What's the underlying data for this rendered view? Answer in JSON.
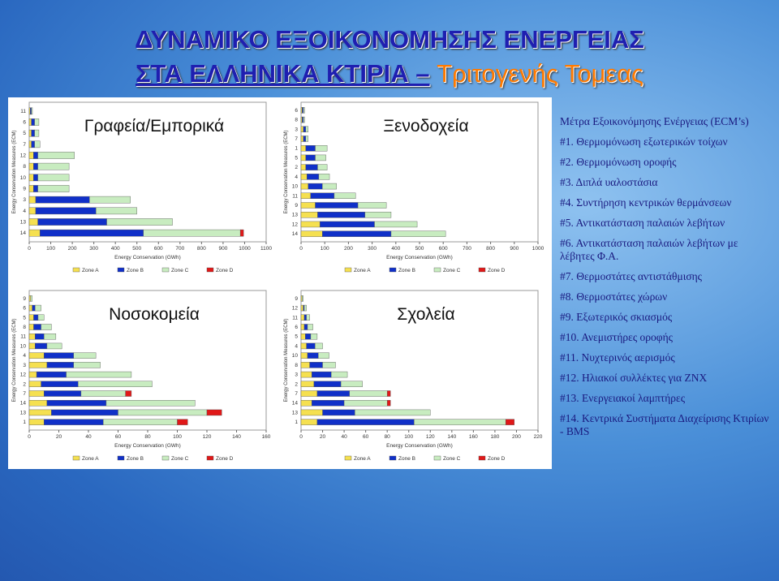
{
  "title": {
    "line1": "ΔΥΝΑΜΙΚΟ ΕΞΟΙΚΟΝΟΜΗΣΗΣ ΕΝΕΡΓΕΙΑΣ",
    "line2": "ΣΤΑ ΕΛΛΗΝΙΚΑ ΚΤΙΡΙΑ –",
    "subtitle": "Τριτογενής Τομεας"
  },
  "measures": {
    "heading": "Μέτρα Εξοικονόμησης Ενέργειας (ECM’s)",
    "items": [
      "#1. Θερμομόνωση εξωτερικών τοίχων",
      "#2. Θερμομόνωση οροφής",
      "#3. Διπλά υαλοστάσια",
      "#4. Συντήρηση κεντρικών θερμάνσεων",
      "#5. Αντικατάσταση παλαιών λεβήτων",
      "#6. Αντικατάσταση παλαιών λεβήτων με λέβητες Φ.Α.",
      "#7. Θερμοστάτες αντιστάθμισης",
      "#8. Θερμοστάτες χώρων",
      "#9. Εξωτερικός σκιασμός",
      "#10. Ανεμιστήρες οροφής",
      "#11. Νυχτερινός αερισμός",
      "#12. Ηλιακοί συλλέκτες για ΖΝΧ",
      "#13. Ενεργειακοί λαμπτήρες",
      "#14. Κεντρικά Συστήματα Διαχείρισης Κτιρίων - BMS"
    ]
  },
  "chart_data": [
    {
      "type": "bar",
      "orientation": "horizontal",
      "stacked": true,
      "title": "Γραφεία/Εμπορικά",
      "x_label": "Energy Conservation (GWh)",
      "y_label": "Energy Conservation Measures (ECM)",
      "categories": [
        "11",
        "6",
        "5",
        "7",
        "12",
        "8",
        "10",
        "9",
        "3",
        "4",
        "13",
        "14"
      ],
      "xlim": [
        0,
        1100
      ],
      "xticks": [
        0,
        100,
        200,
        300,
        400,
        500,
        600,
        700,
        800,
        900,
        1000,
        1100
      ],
      "grid": false,
      "series": [
        {
          "name": "Zone A",
          "color": "#f5e050",
          "values": [
            5,
            10,
            10,
            10,
            20,
            20,
            20,
            20,
            30,
            30,
            40,
            50
          ]
        },
        {
          "name": "Zone B",
          "color": "#1030c8",
          "values": [
            5,
            15,
            15,
            15,
            20,
            20,
            20,
            20,
            250,
            280,
            320,
            480
          ]
        },
        {
          "name": "Zone C",
          "color": "#c8ecc0",
          "values": [
            5,
            20,
            20,
            25,
            170,
            145,
            145,
            145,
            190,
            190,
            305,
            450
          ]
        },
        {
          "name": "Zone D",
          "color": "#e01818",
          "values": [
            0,
            0,
            0,
            0,
            0,
            0,
            0,
            0,
            0,
            0,
            0,
            15
          ]
        }
      ]
    },
    {
      "type": "bar",
      "orientation": "horizontal",
      "stacked": true,
      "title": "Ξενοδοχεία",
      "x_label": "Energy Conservation (GWh)",
      "y_label": "Energy Conservation Measures (ECM)",
      "categories": [
        "6",
        "8",
        "3",
        "7",
        "1",
        "5",
        "2",
        "4",
        "10",
        "11",
        "9",
        "13",
        "12",
        "14"
      ],
      "xlim": [
        0,
        1000
      ],
      "xticks": [
        0,
        100,
        200,
        300,
        400,
        500,
        600,
        700,
        800,
        900,
        1000
      ],
      "grid": false,
      "series": [
        {
          "name": "Zone A",
          "color": "#f5e050",
          "values": [
            5,
            5,
            10,
            10,
            20,
            20,
            20,
            25,
            30,
            40,
            60,
            70,
            80,
            90
          ]
        },
        {
          "name": "Zone B",
          "color": "#1030c8",
          "values": [
            5,
            5,
            10,
            10,
            40,
            40,
            50,
            50,
            60,
            100,
            180,
            200,
            230,
            290
          ]
        },
        {
          "name": "Zone C",
          "color": "#c8ecc0",
          "values": [
            5,
            5,
            10,
            10,
            50,
            45,
            40,
            45,
            60,
            90,
            120,
            110,
            180,
            230
          ]
        },
        {
          "name": "Zone D",
          "color": "#e01818",
          "values": [
            0,
            0,
            0,
            0,
            0,
            0,
            0,
            0,
            0,
            0,
            0,
            0,
            0,
            0
          ]
        }
      ]
    },
    {
      "type": "bar",
      "orientation": "horizontal",
      "stacked": true,
      "title": "Νοσοκομεία",
      "x_label": "Energy Conservation (GWh)",
      "y_label": "Energy Conservation Measures (ECM)",
      "categories": [
        "9",
        "6",
        "5",
        "8",
        "11",
        "10",
        "4",
        "3",
        "12",
        "2",
        "7",
        "14",
        "13",
        "1"
      ],
      "xlim": [
        0,
        160
      ],
      "xticks": [
        0,
        20,
        40,
        60,
        80,
        100,
        120,
        140,
        160
      ],
      "grid": false,
      "series": [
        {
          "name": "Zone A",
          "color": "#f5e050",
          "values": [
            1,
            2,
            3,
            3,
            4,
            4,
            10,
            12,
            5,
            8,
            10,
            12,
            15,
            10
          ]
        },
        {
          "name": "Zone B",
          "color": "#1030c8",
          "values": [
            0,
            2,
            3,
            5,
            6,
            8,
            20,
            18,
            20,
            25,
            25,
            40,
            45,
            40
          ]
        },
        {
          "name": "Zone C",
          "color": "#c8ecc0",
          "values": [
            1,
            4,
            4,
            7,
            8,
            10,
            15,
            18,
            44,
            50,
            30,
            60,
            60,
            50
          ]
        },
        {
          "name": "Zone D",
          "color": "#e01818",
          "values": [
            0,
            0,
            0,
            0,
            0,
            0,
            0,
            0,
            0,
            0,
            4,
            0,
            10,
            7
          ]
        }
      ]
    },
    {
      "type": "bar",
      "orientation": "horizontal",
      "stacked": true,
      "title": "Σχολεία",
      "x_label": "Energy Conservation (GWh)",
      "y_label": "Energy Conservation Measures (ECM)",
      "categories": [
        "9",
        "12",
        "11",
        "6",
        "5",
        "4",
        "10",
        "8",
        "3",
        "2",
        "7",
        "14",
        "13",
        "1"
      ],
      "xlim": [
        0,
        220
      ],
      "xticks": [
        0,
        20,
        40,
        60,
        80,
        100,
        120,
        140,
        160,
        180,
        200,
        220
      ],
      "grid": false,
      "series": [
        {
          "name": "Zone A",
          "color": "#f5e050",
          "values": [
            1,
            2,
            3,
            3,
            4,
            5,
            6,
            8,
            10,
            12,
            15,
            10,
            20,
            15
          ]
        },
        {
          "name": "Zone B",
          "color": "#1030c8",
          "values": [
            0,
            1,
            2,
            3,
            5,
            8,
            10,
            12,
            18,
            25,
            30,
            30,
            30,
            90
          ]
        },
        {
          "name": "Zone C",
          "color": "#c8ecc0",
          "values": [
            1,
            2,
            3,
            5,
            6,
            7,
            10,
            12,
            15,
            20,
            35,
            40,
            70,
            85
          ]
        },
        {
          "name": "Zone D",
          "color": "#e01818",
          "values": [
            0,
            0,
            0,
            0,
            0,
            0,
            0,
            0,
            0,
            0,
            3,
            3,
            0,
            8
          ]
        }
      ]
    }
  ]
}
